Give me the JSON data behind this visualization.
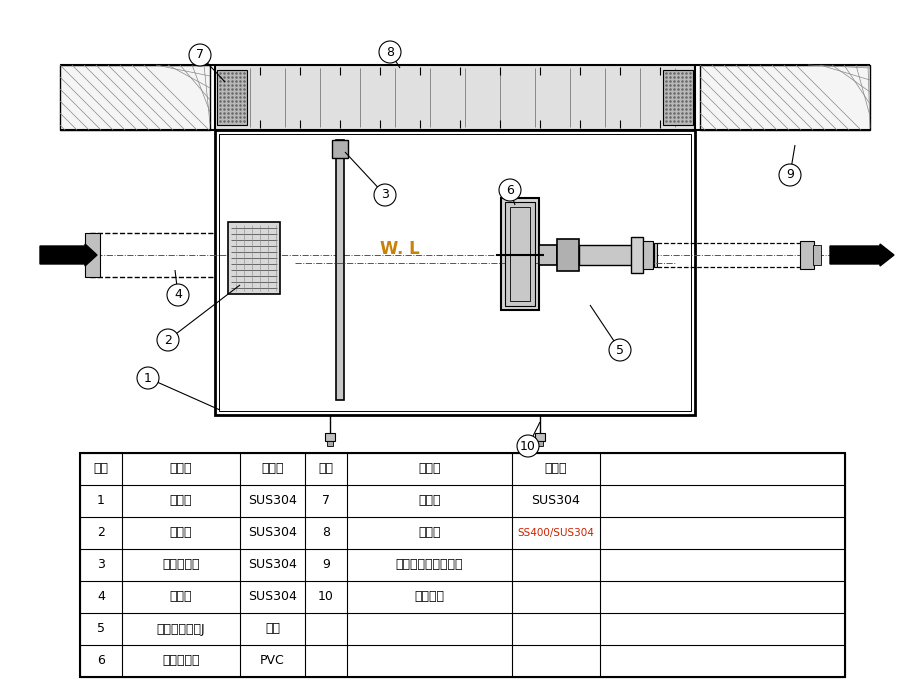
{
  "bg_color": "#ffffff",
  "line_color": "#000000",
  "orange_color": "#c8820a",
  "red_color": "#cc2200",
  "table_headers": [
    "部番",
    "品　名",
    "材　質",
    "部番",
    "品　名",
    "材　質"
  ],
  "table_rows": [
    [
      "1",
      "本　体",
      "SUS304",
      "7",
      "受　枠",
      "SUS304"
    ],
    [
      "2",
      "受　管",
      "SUS304",
      "8",
      "ふ　た",
      "SS400/SUS304"
    ],
    [
      "3",
      "スライド板",
      "SUS304",
      "9",
      "スラブコンクリート",
      ""
    ],
    [
      "4",
      "流入管",
      "SUS304",
      "10",
      "吊り金具",
      ""
    ],
    [
      "5",
      "フレキシブルJ",
      "ゴム",
      "",
      "",
      ""
    ],
    [
      "6",
      "トラップ管",
      "PVC",
      "",
      "",
      ""
    ]
  ],
  "wl_text": "W. L"
}
